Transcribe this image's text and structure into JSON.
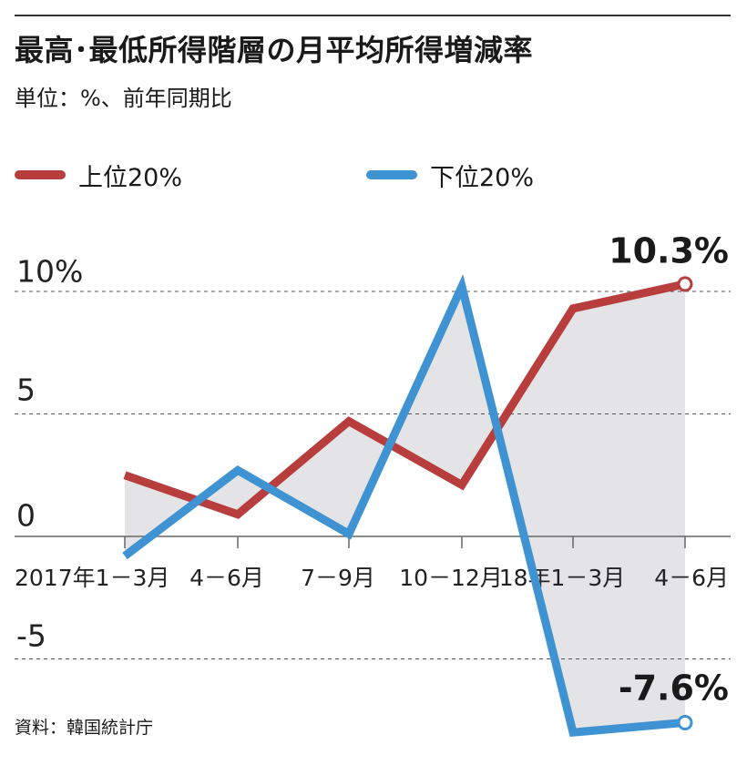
{
  "title": "最高･最低所得階層の月平均所得増減率",
  "subtitle": "単位：%、前年同期比",
  "source": "資料：韓国統計庁",
  "chart_data": {
    "type": "line",
    "title": "最高･最低所得階層の月平均所得増減率",
    "ylabel": "%",
    "xlabel": "",
    "categories": [
      "2017年1－3月",
      "4－6月",
      "7－9月",
      "10－12月",
      "18年1－3月",
      "4－6月"
    ],
    "ylim": [
      -8,
      11
    ],
    "yticks": [
      10,
      5,
      0,
      -5
    ],
    "ytick_labels": [
      "10%",
      "5",
      "0",
      "-5"
    ],
    "series": [
      {
        "name": "上位20%",
        "color": "#b83d3d",
        "values": [
          2.5,
          0.9,
          4.7,
          2.1,
          9.3,
          10.3
        ]
      },
      {
        "name": "下位20%",
        "color": "#3f93d2",
        "values": [
          -0.8,
          2.7,
          0.1,
          10.2,
          -8.0,
          -7.6
        ]
      }
    ],
    "annotations": [
      {
        "series": 0,
        "index": 5,
        "text": "10.3%"
      },
      {
        "series": 1,
        "index": 5,
        "text": "-7.6%"
      }
    ],
    "grid": true,
    "legend": "top-left"
  }
}
